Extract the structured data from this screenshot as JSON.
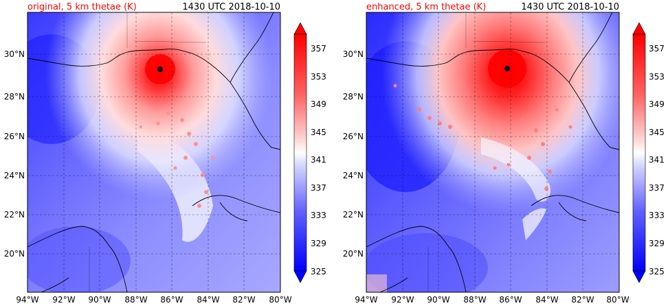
{
  "panels": [
    {
      "title_left": "original, 5 km thetae (K)",
      "title_right": "1430 UTC 2018-10-10",
      "eye_marker": {
        "lon": -86.7,
        "lat": 29.3
      }
    },
    {
      "title_left": "enhanced, 5 km thetae (K)",
      "title_right": "1430 UTC 2018-10-10",
      "eye_marker": {
        "lon": -86.2,
        "lat": 29.3
      }
    }
  ],
  "map": {
    "lon_range": [
      -94,
      -80
    ],
    "lat_range": [
      18.2,
      32
    ],
    "lon_ticks": [
      "94°W",
      "92°W",
      "90°W",
      "88°W",
      "86°W",
      "84°W",
      "82°W",
      "80°W"
    ],
    "lat_ticks": [
      "20°N",
      "22°N",
      "24°N",
      "26°N",
      "28°N",
      "30°N"
    ],
    "gridlines": "dashed"
  },
  "colorbar": {
    "labels": [
      "325",
      "329",
      "333",
      "337",
      "341",
      "345",
      "349",
      "353",
      "357"
    ],
    "extend": "both",
    "colormap": "bwr",
    "min": 325,
    "max": 357
  },
  "colors": {
    "title_left": "#ff0000",
    "cold": "#0000ff",
    "warm": "#ff0000"
  }
}
